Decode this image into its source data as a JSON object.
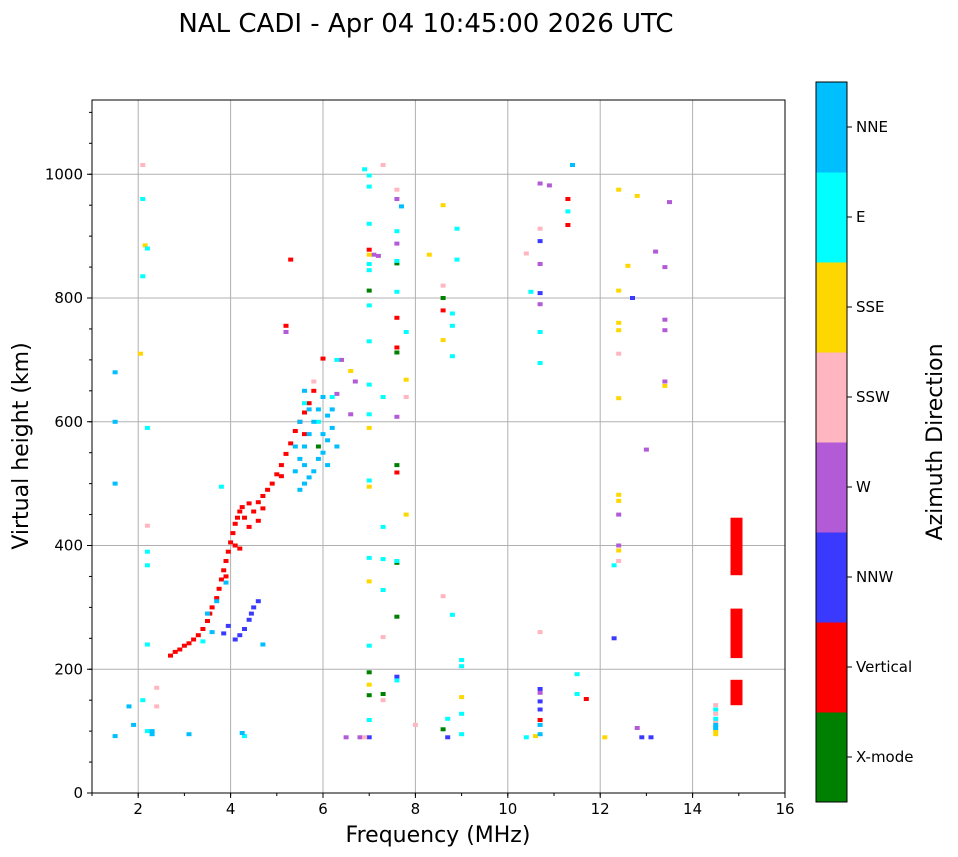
{
  "chart_data": {
    "type": "scatter",
    "title": "NAL CADI - Apr 04 10:45:00 2026 UTC",
    "xlabel": "Frequency (MHz)",
    "ylabel": "Virtual height (km)",
    "xlim": [
      1,
      16
    ],
    "ylim": [
      0,
      1120
    ],
    "xticks": [
      2,
      4,
      6,
      8,
      10,
      12,
      14,
      16
    ],
    "yticks": [
      0,
      200,
      400,
      600,
      800,
      1000
    ],
    "grid": true,
    "colorbar": {
      "label": "Azimuth Direction",
      "categories": [
        {
          "name": "X-mode",
          "color": "#008000"
        },
        {
          "name": "Vertical",
          "color": "#ff0000"
        },
        {
          "name": "NNW",
          "color": "#3a3aff"
        },
        {
          "name": "W",
          "color": "#b35bd6"
        },
        {
          "name": "SSW",
          "color": "#ffb6c1"
        },
        {
          "name": "SSE",
          "color": "#ffd700"
        },
        {
          "name": "E",
          "color": "#00ffff"
        },
        {
          "name": "NNE",
          "color": "#00bfff"
        }
      ]
    },
    "series": [
      {
        "name": "Vertical",
        "color": "#ff0000",
        "points": [
          [
            2.7,
            222
          ],
          [
            2.8,
            228
          ],
          [
            2.9,
            232
          ],
          [
            3.0,
            238
          ],
          [
            3.1,
            242
          ],
          [
            3.2,
            248
          ],
          [
            3.3,
            255
          ],
          [
            3.4,
            265
          ],
          [
            3.5,
            278
          ],
          [
            3.55,
            290
          ],
          [
            3.6,
            300
          ],
          [
            3.7,
            315
          ],
          [
            3.75,
            330
          ],
          [
            3.8,
            345
          ],
          [
            3.85,
            360
          ],
          [
            3.9,
            375
          ],
          [
            3.95,
            390
          ],
          [
            4.0,
            405
          ],
          [
            4.05,
            420
          ],
          [
            4.1,
            435
          ],
          [
            4.15,
            445
          ],
          [
            4.2,
            455
          ],
          [
            4.25,
            462
          ],
          [
            4.3,
            445
          ],
          [
            4.4,
            468
          ],
          [
            4.5,
            455
          ],
          [
            4.6,
            470
          ],
          [
            4.7,
            480
          ],
          [
            4.8,
            490
          ],
          [
            4.9,
            500
          ],
          [
            5.0,
            515
          ],
          [
            5.1,
            530
          ],
          [
            5.2,
            548
          ],
          [
            5.3,
            565
          ],
          [
            5.4,
            585
          ],
          [
            5.5,
            600
          ],
          [
            5.6,
            615
          ],
          [
            5.7,
            630
          ],
          [
            5.8,
            650
          ],
          [
            6.0,
            702
          ],
          [
            5.2,
            755
          ],
          [
            5.3,
            862
          ],
          [
            4.1,
            400
          ],
          [
            4.4,
            430
          ],
          [
            4.6,
            440
          ],
          [
            3.9,
            350
          ],
          [
            4.2,
            395
          ],
          [
            4.7,
            460
          ],
          [
            5.1,
            512
          ],
          [
            5.6,
            580
          ],
          [
            7.0,
            878
          ],
          [
            7.6,
            720
          ],
          [
            7.6,
            518
          ],
          [
            7.6,
            768
          ],
          [
            8.6,
            780
          ],
          [
            10.7,
            118
          ],
          [
            11.3,
            960
          ],
          [
            11.3,
            918
          ],
          [
            11.7,
            152
          ]
        ]
      },
      {
        "name": "X-mode",
        "color": "#008000",
        "points": [
          [
            7.6,
            712
          ],
          [
            7.6,
            530
          ],
          [
            7.6,
            372
          ],
          [
            7.6,
            285
          ],
          [
            7.0,
            195
          ],
          [
            7.0,
            158
          ],
          [
            8.6,
            103
          ],
          [
            14.95,
            222
          ],
          [
            5.9,
            560
          ],
          [
            7.6,
            856
          ],
          [
            7.0,
            812
          ],
          [
            7.3,
            160
          ],
          [
            8.6,
            800
          ]
        ]
      },
      {
        "name": "NNW",
        "color": "#3a3aff",
        "points": [
          [
            4.45,
            290
          ],
          [
            4.4,
            280
          ],
          [
            4.3,
            265
          ],
          [
            4.2,
            255
          ],
          [
            4.1,
            248
          ],
          [
            4.6,
            310
          ],
          [
            4.5,
            300
          ],
          [
            3.85,
            258
          ],
          [
            3.95,
            270
          ],
          [
            10.7,
            168
          ],
          [
            10.7,
            148
          ],
          [
            10.7,
            135
          ],
          [
            10.7,
            808
          ],
          [
            10.7,
            892
          ],
          [
            12.3,
            250
          ],
          [
            12.7,
            800
          ],
          [
            12.9,
            90
          ],
          [
            13.1,
            90
          ],
          [
            7.6,
            188
          ],
          [
            7.0,
            90
          ],
          [
            8.7,
            90
          ]
        ]
      },
      {
        "name": "W",
        "color": "#b35bd6",
        "points": [
          [
            6.4,
            700
          ],
          [
            6.7,
            665
          ],
          [
            6.3,
            645
          ],
          [
            6.6,
            612
          ],
          [
            7.6,
            608
          ],
          [
            7.6,
            960
          ],
          [
            7.6,
            888
          ],
          [
            7.1,
            870
          ],
          [
            10.7,
            985
          ],
          [
            10.9,
            982
          ],
          [
            10.7,
            855
          ],
          [
            10.7,
            790
          ],
          [
            13.0,
            555
          ],
          [
            13.4,
            765
          ],
          [
            13.4,
            748
          ],
          [
            13.4,
            665
          ],
          [
            13.2,
            875
          ],
          [
            13.4,
            850
          ],
          [
            12.4,
            400
          ],
          [
            12.4,
            450
          ],
          [
            12.8,
            105
          ],
          [
            10.7,
            162
          ],
          [
            6.5,
            90
          ],
          [
            6.8,
            90
          ],
          [
            5.2,
            745
          ],
          [
            7.2,
            868
          ],
          [
            13.5,
            955
          ]
        ]
      },
      {
        "name": "SSW",
        "color": "#ffb6c1",
        "points": [
          [
            2.4,
            170
          ],
          [
            2.4,
            140
          ],
          [
            2.1,
            1015
          ],
          [
            2.2,
            432
          ],
          [
            7.3,
            1015
          ],
          [
            7.3,
            252
          ],
          [
            7.3,
            150
          ],
          [
            7.6,
            975
          ],
          [
            7.8,
            640
          ],
          [
            8.0,
            110
          ],
          [
            8.6,
            820
          ],
          [
            8.6,
            318
          ],
          [
            10.4,
            872
          ],
          [
            10.7,
            260
          ],
          [
            10.7,
            912
          ],
          [
            12.4,
            710
          ],
          [
            12.4,
            375
          ],
          [
            14.5,
            142
          ],
          [
            14.5,
            128
          ],
          [
            14.5,
            115
          ],
          [
            6.9,
            90
          ],
          [
            5.8,
            665
          ]
        ]
      },
      {
        "name": "SSE",
        "color": "#ffd700",
        "points": [
          [
            2.05,
            710
          ],
          [
            2.15,
            885
          ],
          [
            6.6,
            682
          ],
          [
            7.0,
            870
          ],
          [
            7.0,
            590
          ],
          [
            7.0,
            495
          ],
          [
            7.0,
            342
          ],
          [
            7.0,
            175
          ],
          [
            7.8,
            668
          ],
          [
            7.8,
            450
          ],
          [
            8.3,
            870
          ],
          [
            8.6,
            950
          ],
          [
            8.6,
            732
          ],
          [
            9.0,
            155
          ],
          [
            12.1,
            90
          ],
          [
            12.4,
            975
          ],
          [
            12.4,
            812
          ],
          [
            12.4,
            760
          ],
          [
            12.4,
            748
          ],
          [
            12.4,
            638
          ],
          [
            12.4,
            482
          ],
          [
            12.4,
            472
          ],
          [
            12.4,
            392
          ],
          [
            12.8,
            965
          ],
          [
            12.6,
            852
          ],
          [
            13.4,
            658
          ],
          [
            14.5,
            95
          ],
          [
            14.5,
            100
          ],
          [
            10.6,
            92
          ]
        ]
      },
      {
        "name": "E",
        "color": "#00ffff",
        "points": [
          [
            2.1,
            960
          ],
          [
            2.2,
            880
          ],
          [
            2.1,
            835
          ],
          [
            2.2,
            590
          ],
          [
            2.2,
            390
          ],
          [
            2.2,
            368
          ],
          [
            2.2,
            240
          ],
          [
            2.1,
            150
          ],
          [
            2.2,
            100
          ],
          [
            3.8,
            495
          ],
          [
            3.4,
            245
          ],
          [
            4.3,
            92
          ],
          [
            6.9,
            1008
          ],
          [
            7.0,
            998
          ],
          [
            7.0,
            980
          ],
          [
            7.0,
            920
          ],
          [
            7.0,
            855
          ],
          [
            7.0,
            845
          ],
          [
            7.0,
            788
          ],
          [
            7.0,
            730
          ],
          [
            7.0,
            660
          ],
          [
            7.0,
            612
          ],
          [
            7.0,
            505
          ],
          [
            7.0,
            380
          ],
          [
            7.0,
            238
          ],
          [
            7.0,
            118
          ],
          [
            7.3,
            430
          ],
          [
            7.3,
            378
          ],
          [
            7.3,
            328
          ],
          [
            7.3,
            640
          ],
          [
            7.6,
            908
          ],
          [
            7.6,
            860
          ],
          [
            7.6,
            810
          ],
          [
            7.6,
            375
          ],
          [
            7.6,
            182
          ],
          [
            7.8,
            745
          ],
          [
            8.8,
            775
          ],
          [
            8.8,
            755
          ],
          [
            8.8,
            706
          ],
          [
            8.9,
            912
          ],
          [
            8.9,
            862
          ],
          [
            8.8,
            288
          ],
          [
            9.0,
            215
          ],
          [
            9.0,
            205
          ],
          [
            9.0,
            128
          ],
          [
            9.0,
            95
          ],
          [
            8.7,
            120
          ],
          [
            10.7,
            745
          ],
          [
            10.7,
            695
          ],
          [
            10.5,
            810
          ],
          [
            10.4,
            90
          ],
          [
            11.5,
            192
          ],
          [
            11.5,
            160
          ],
          [
            11.3,
            940
          ],
          [
            14.5,
            120
          ],
          [
            14.5,
            135
          ],
          [
            12.3,
            368
          ],
          [
            6.3,
            700
          ],
          [
            5.6,
            630
          ],
          [
            6.2,
            640
          ],
          [
            5.9,
            600
          ]
        ]
      },
      {
        "name": "NNE",
        "color": "#00bfff",
        "points": [
          [
            6.0,
            640
          ],
          [
            6.1,
            610
          ],
          [
            6.2,
            590
          ],
          [
            6.1,
            570
          ],
          [
            6.0,
            550
          ],
          [
            5.9,
            540
          ],
          [
            5.8,
            520
          ],
          [
            5.7,
            510
          ],
          [
            5.6,
            500
          ],
          [
            5.5,
            490
          ],
          [
            5.4,
            520
          ],
          [
            5.5,
            540
          ],
          [
            5.6,
            560
          ],
          [
            5.7,
            580
          ],
          [
            5.8,
            600
          ],
          [
            5.9,
            620
          ],
          [
            6.0,
            580
          ],
          [
            6.1,
            530
          ],
          [
            5.5,
            600
          ],
          [
            6.2,
            620
          ],
          [
            6.3,
            560
          ],
          [
            5.6,
            530
          ],
          [
            5.4,
            560
          ],
          [
            5.7,
            620
          ],
          [
            4.25,
            97
          ],
          [
            3.1,
            95
          ],
          [
            3.6,
            260
          ],
          [
            3.5,
            290
          ],
          [
            3.9,
            340
          ],
          [
            3.7,
            310
          ],
          [
            4.7,
            240
          ],
          [
            2.3,
            100
          ],
          [
            2.3,
            95
          ],
          [
            1.5,
            680
          ],
          [
            1.5,
            600
          ],
          [
            1.5,
            500
          ],
          [
            1.5,
            92
          ],
          [
            1.8,
            140
          ],
          [
            1.9,
            110
          ],
          [
            7.7,
            948
          ],
          [
            10.7,
            95
          ],
          [
            11.4,
            1015
          ],
          [
            14.5,
            110
          ],
          [
            14.5,
            105
          ],
          [
            10.7,
            110
          ],
          [
            5.6,
            650
          ]
        ]
      }
    ],
    "vertical_bars": [
      {
        "name": "Vertical",
        "color": "#ff0000",
        "x": 14.95,
        "y_from": 352,
        "y_to": 445
      },
      {
        "name": "Vertical",
        "color": "#ff0000",
        "x": 14.95,
        "y_from": 218,
        "y_to": 298
      },
      {
        "name": "Vertical",
        "color": "#ff0000",
        "x": 14.95,
        "y_from": 142,
        "y_to": 183
      }
    ]
  }
}
